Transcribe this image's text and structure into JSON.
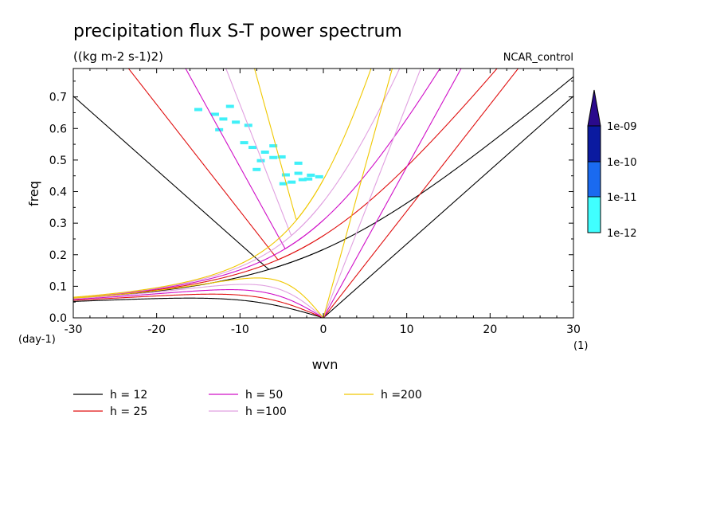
{
  "chart_data": {
    "type": "line",
    "title": "precipitation flux S-T power spectrum",
    "units_label": "((kg m-2 s-1)2)",
    "case_label": "NCAR_control",
    "xlabel": "wvn",
    "ylabel": "freq",
    "x_unit_label": "(1)",
    "y_unit_label": "(day-1)",
    "xlim": [
      -30,
      30
    ],
    "ylim": [
      0,
      0.79
    ],
    "x_ticks": [
      -30,
      -20,
      -10,
      0,
      10,
      20,
      30
    ],
    "x_tick_labels": [
      "-30",
      "-20",
      "-10",
      "0",
      "10",
      "20",
      "30"
    ],
    "y_ticks": [
      0,
      0.1,
      0.2,
      0.3,
      0.4,
      0.5,
      0.6,
      0.7
    ],
    "y_tick_labels": [
      "0.0",
      "0.1",
      "0.2",
      "0.3",
      "0.4",
      "0.5",
      "0.6",
      "0.7"
    ],
    "grid": false,
    "legend_position": "bottom",
    "series": [
      {
        "name": "h = 12",
        "h": 12,
        "color": "#000000"
      },
      {
        "name": "h = 25",
        "h": 25,
        "color": "#e01010"
      },
      {
        "name": "h = 50",
        "h": 50,
        "color": "#d010c8"
      },
      {
        "name": "h =100",
        "h": 100,
        "color": "#e0a0e0"
      },
      {
        "name": "h =200",
        "h": 200,
        "color": "#f0c800"
      }
    ],
    "colorbar": {
      "labels": [
        "1e-09",
        "1e-10",
        "1e-11",
        "1e-12"
      ],
      "colors": [
        "#2a0a8c",
        "#0a1aa0",
        "#1a6af0",
        "#40ffff"
      ]
    },
    "contour_fill_color": "#40f0f8",
    "contour_patches": [
      [
        -4.5,
        0.453
      ],
      [
        -3.0,
        0.458
      ],
      [
        -1.5,
        0.452
      ],
      [
        -0.5,
        0.447
      ],
      [
        -2.5,
        0.438
      ],
      [
        -3.8,
        0.43
      ],
      [
        -4.8,
        0.425
      ],
      [
        -1.8,
        0.44
      ],
      [
        -6.0,
        0.508
      ],
      [
        -7.5,
        0.498
      ],
      [
        -5.0,
        0.51
      ],
      [
        -8.0,
        0.47
      ],
      [
        -3.0,
        0.49
      ],
      [
        -7.0,
        0.525
      ],
      [
        -8.5,
        0.54
      ],
      [
        -6.0,
        0.545
      ],
      [
        -9.5,
        0.555
      ],
      [
        -9.0,
        0.61
      ],
      [
        -10.5,
        0.62
      ],
      [
        -12.5,
        0.596
      ],
      [
        -15.0,
        0.66
      ],
      [
        -13.0,
        0.645
      ],
      [
        -12.0,
        0.63
      ],
      [
        -11.2,
        0.67
      ]
    ]
  }
}
